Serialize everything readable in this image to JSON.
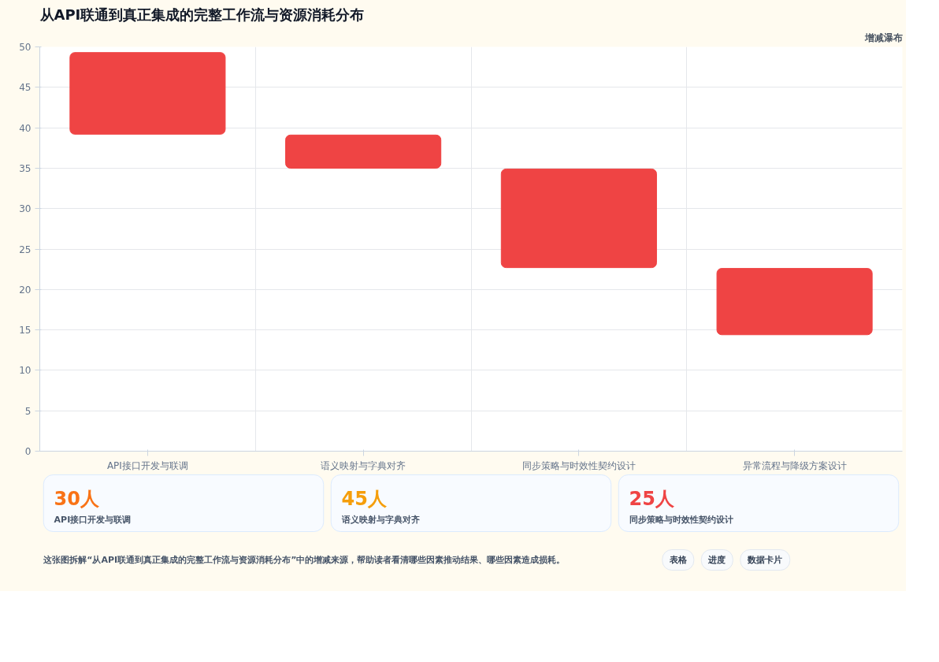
{
  "chart_data": [
    {
      "type": "bar",
      "title": "从API联通到真正集成的完整工作流与资源消耗分布",
      "subtitle": "增减瀑布",
      "categories": [
        "API接口开发与联调",
        "语义映射与字典对齐",
        "同步策略与时效性契约设计",
        "异常流程与降级方案设计"
      ],
      "base": [
        39.2,
        35.0,
        22.7,
        14.4
      ],
      "values": [
        10.1,
        4.1,
        12.2,
        8.2
      ],
      "color": "#ef4444",
      "ylim": [
        0,
        50
      ],
      "yticks": [
        0,
        5,
        10,
        15,
        20,
        25,
        30,
        35,
        40,
        45,
        50
      ],
      "grid": true,
      "annotations": [
        "这张图拆解“从API联通到真正集成的完整工作流与资源消耗分布”中的增减来源，帮助读者看清哪些因素推动结果、哪些因素造成损耗。",
        "表格",
        "进度",
        "数据卡片"
      ]
    },
    {
      "type": "other",
      "annotations": [
        "30人",
        "API接口开发与联调",
        "45人",
        "语义映射与字典对齐",
        "25人",
        "同步策略与时效性契约设计"
      ],
      "colors": [
        "#f97316",
        "#f59e0b",
        "#ef4444"
      ]
    }
  ]
}
